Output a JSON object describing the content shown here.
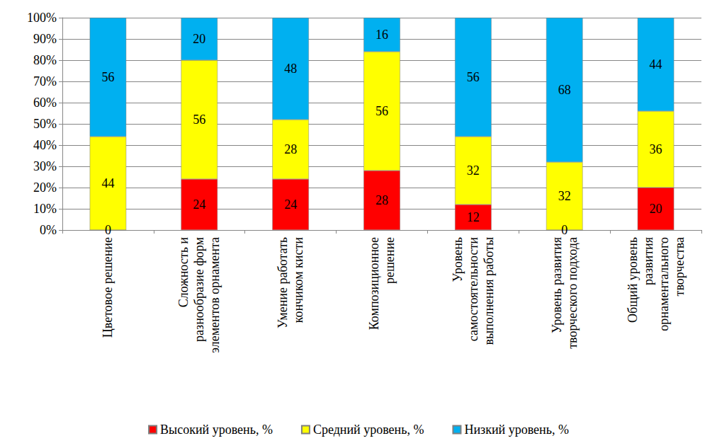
{
  "chart_data": {
    "type": "bar",
    "stacked": true,
    "data_labels": true,
    "grid": true,
    "legend": "bottom",
    "categories": [
      "Цветовое решение",
      "Сложность и\nразнообразие форм\nэлементов орнамента",
      "Умение работать\nкончиком кисти",
      "Композиционное\nрешение",
      "Уровень\nсамостоятельности\nвыполнения работы",
      "Уровень развития\nтворческого подхода",
      "Общий уровень\nразвития\nорнаментального\nтворчества"
    ],
    "series": [
      {
        "name": "Высокий уровень, %",
        "color": "#ff0000",
        "values": [
          0,
          24,
          24,
          28,
          12,
          0,
          20
        ]
      },
      {
        "name": "Средний уровень, %",
        "color": "#ffff00",
        "values": [
          44,
          56,
          28,
          56,
          32,
          32,
          36
        ]
      },
      {
        "name": "Низкий уровень, %",
        "color": "#00b0f0",
        "values": [
          56,
          20,
          48,
          16,
          56,
          68,
          44
        ]
      }
    ],
    "ylim": [
      0,
      100
    ],
    "yticks": [
      {
        "value": 0,
        "label": "0%"
      },
      {
        "value": 10,
        "label": "10%"
      },
      {
        "value": 20,
        "label": "20%"
      },
      {
        "value": 30,
        "label": "30%"
      },
      {
        "value": 40,
        "label": "40%"
      },
      {
        "value": 50,
        "label": "50%"
      },
      {
        "value": 60,
        "label": "60%"
      },
      {
        "value": 70,
        "label": "70%"
      },
      {
        "value": 80,
        "label": "80%"
      },
      {
        "value": 90,
        "label": "90%"
      },
      {
        "value": 100,
        "label": "100%"
      }
    ]
  }
}
